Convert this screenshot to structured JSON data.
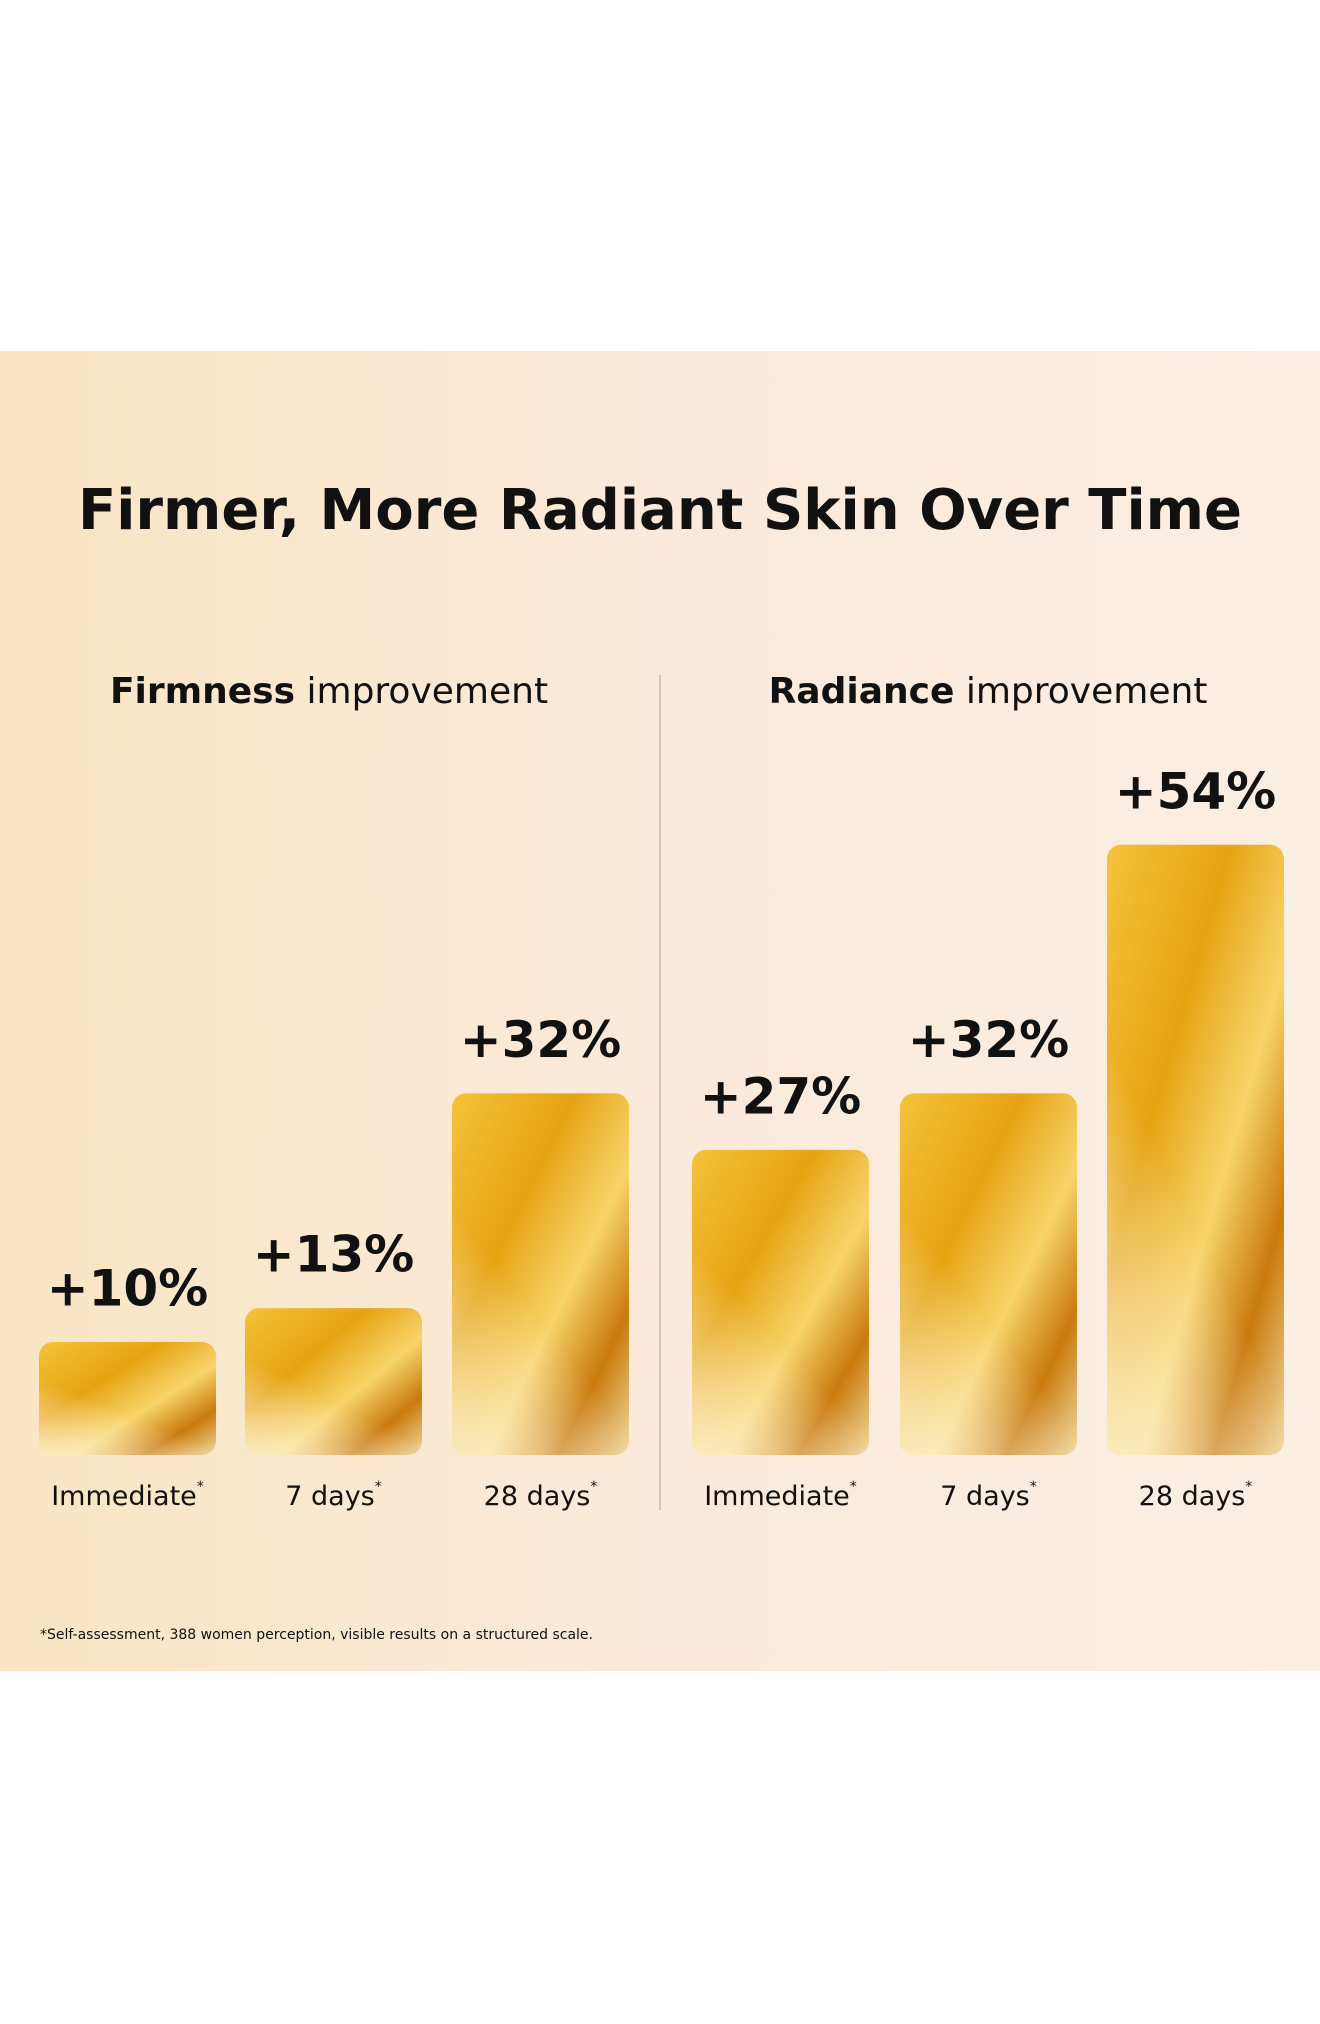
{
  "title": "Firmer, More Radiant Skin Over Time",
  "footnote": "*Self-assessment, 388 women perception, visible results on a structured scale.",
  "chart_data": [
    {
      "type": "bar",
      "title_emphasis": "Firmness",
      "title_rest": "improvement",
      "categories": [
        "Immediate",
        "7 days",
        "28 days"
      ],
      "category_marker": "*",
      "values": [
        10,
        13,
        32
      ],
      "value_labels": [
        "+10%",
        "+13%",
        "+32%"
      ]
    },
    {
      "type": "bar",
      "title_emphasis": "Radiance",
      "title_rest": "improvement",
      "categories": [
        "Immediate",
        "7 days",
        "28 days"
      ],
      "category_marker": "*",
      "values": [
        27,
        32,
        54
      ],
      "value_labels": [
        "+27%",
        "+32%",
        "+54%"
      ]
    }
  ]
}
